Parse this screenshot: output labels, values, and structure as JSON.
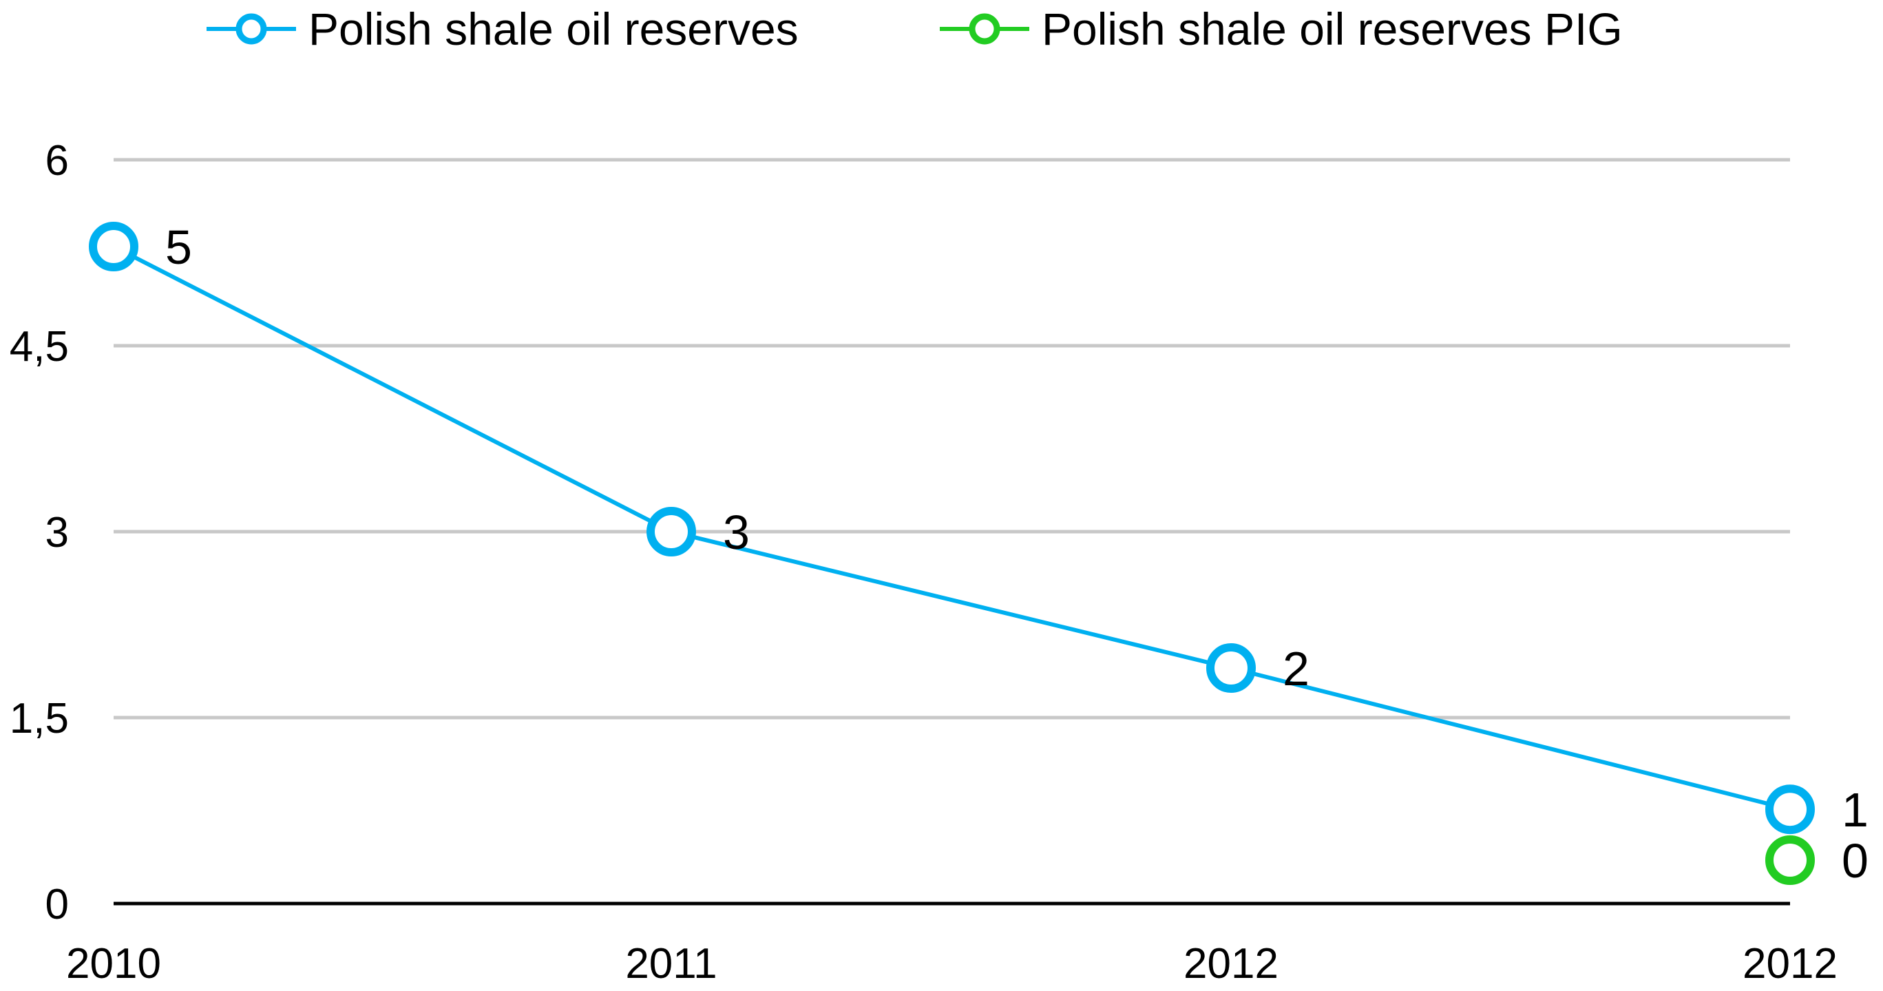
{
  "chart_data": {
    "type": "line",
    "x": [
      "2010",
      "2011",
      "2012",
      "2012"
    ],
    "ylim": [
      0,
      6
    ],
    "y_ticks": [
      "0",
      "1,5",
      "3",
      "4,5",
      "6"
    ],
    "y_tick_values": [
      0,
      1.5,
      3,
      4.5,
      6
    ],
    "grid": true,
    "legend_position": "top",
    "series": [
      {
        "name": "Polish shale oil reserves",
        "color": "#00B0F0",
        "points": [
          {
            "x_index": 0,
            "value": 5.3,
            "label": "5"
          },
          {
            "x_index": 1,
            "value": 3.0,
            "label": "3"
          },
          {
            "x_index": 2,
            "value": 1.9,
            "label": "2"
          },
          {
            "x_index": 3,
            "value": 0.76,
            "label": "1"
          }
        ]
      },
      {
        "name": "Polish shale oil reserves PIG",
        "color": "#22CC22",
        "points": [
          {
            "x_index": 3,
            "value": 0.35,
            "label": "0"
          }
        ]
      }
    ]
  }
}
